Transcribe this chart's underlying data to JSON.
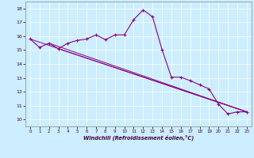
{
  "xlabel": "Windchill (Refroidissement éolien,°C)",
  "background_color": "#cceeff",
  "line_color": "#880088",
  "markersize": 2.5,
  "xlim": [
    -0.5,
    23.5
  ],
  "ylim": [
    9.5,
    18.5
  ],
  "xticks": [
    0,
    1,
    2,
    3,
    4,
    5,
    6,
    7,
    8,
    9,
    10,
    11,
    12,
    13,
    14,
    15,
    16,
    17,
    18,
    19,
    20,
    21,
    22,
    23
  ],
  "yticks": [
    10,
    11,
    12,
    13,
    14,
    15,
    16,
    17,
    18
  ],
  "hours": [
    0,
    1,
    2,
    3,
    4,
    5,
    6,
    7,
    8,
    9,
    10,
    11,
    12,
    13,
    14,
    15,
    16,
    17,
    18,
    19,
    20,
    21,
    22,
    23
  ],
  "windchill": [
    15.8,
    15.2,
    15.5,
    15.1,
    15.5,
    15.7,
    15.8,
    16.1,
    15.75,
    16.1,
    16.1,
    17.2,
    17.9,
    17.4,
    15.05,
    13.05,
    13.05,
    12.8,
    12.5,
    12.2,
    11.1,
    10.4,
    10.55,
    10.55
  ],
  "line1_start_x": 0,
  "line1_start_y": 15.8,
  "line1_end_x": 23,
  "line1_end_y": 10.55,
  "line2_start_x": 2,
  "line2_start_y": 15.5,
  "line2_end_x": 23,
  "line2_end_y": 10.55,
  "line3_start_x": 3,
  "line3_start_y": 15.1,
  "line3_end_x": 23,
  "line3_end_y": 10.55
}
